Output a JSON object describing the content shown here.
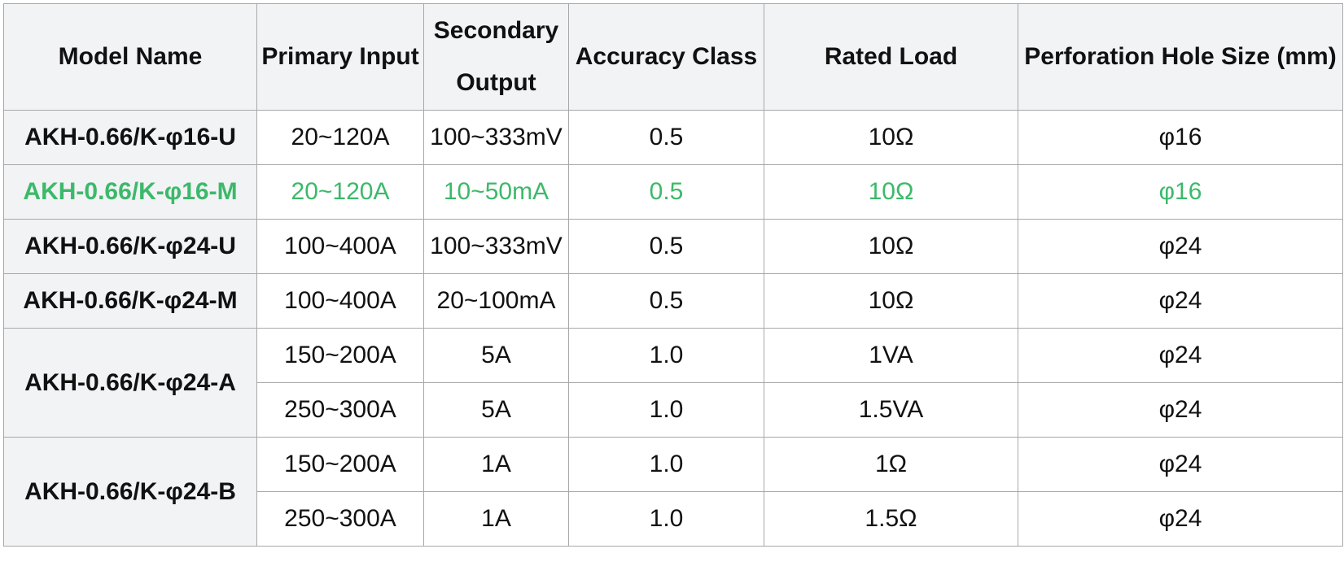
{
  "table": {
    "headers": [
      "Model Name",
      "Primary Input",
      "Secondary Output",
      "Accuracy Class",
      "Rated Load",
      "Perforation Hole Size (mm)"
    ],
    "highlight_color": "#3cb96a",
    "groups": [
      {
        "model": "AKH-0.66/K-φ16-U",
        "highlight": false,
        "rows": [
          {
            "primary_input": "20~120A",
            "secondary_output": "100~333mV",
            "accuracy_class": "0.5",
            "rated_load": "10Ω",
            "hole_size": "φ16"
          }
        ]
      },
      {
        "model": "AKH-0.66/K-φ16-M",
        "highlight": true,
        "rows": [
          {
            "primary_input": "20~120A",
            "secondary_output": "10~50mA",
            "accuracy_class": "0.5",
            "rated_load": "10Ω",
            "hole_size": "φ16"
          }
        ]
      },
      {
        "model": "AKH-0.66/K-φ24-U",
        "highlight": false,
        "rows": [
          {
            "primary_input": "100~400A",
            "secondary_output": "100~333mV",
            "accuracy_class": "0.5",
            "rated_load": "10Ω",
            "hole_size": "φ24"
          }
        ]
      },
      {
        "model": "AKH-0.66/K-φ24-M",
        "highlight": false,
        "rows": [
          {
            "primary_input": "100~400A",
            "secondary_output": "20~100mA",
            "accuracy_class": "0.5",
            "rated_load": "10Ω",
            "hole_size": "φ24"
          }
        ]
      },
      {
        "model": "AKH-0.66/K-φ24-A",
        "highlight": false,
        "rows": [
          {
            "primary_input": "150~200A",
            "secondary_output": "5A",
            "accuracy_class": "1.0",
            "rated_load": "1VA",
            "hole_size": "φ24"
          },
          {
            "primary_input": "250~300A",
            "secondary_output": "5A",
            "accuracy_class": "1.0",
            "rated_load": "1.5VA",
            "hole_size": "φ24"
          }
        ]
      },
      {
        "model": "AKH-0.66/K-φ24-B",
        "highlight": false,
        "rows": [
          {
            "primary_input": "150~200A",
            "secondary_output": "1A",
            "accuracy_class": "1.0",
            "rated_load": "1Ω",
            "hole_size": "φ24"
          },
          {
            "primary_input": "250~300A",
            "secondary_output": "1A",
            "accuracy_class": "1.0",
            "rated_load": "1.5Ω",
            "hole_size": "φ24"
          }
        ]
      }
    ]
  }
}
